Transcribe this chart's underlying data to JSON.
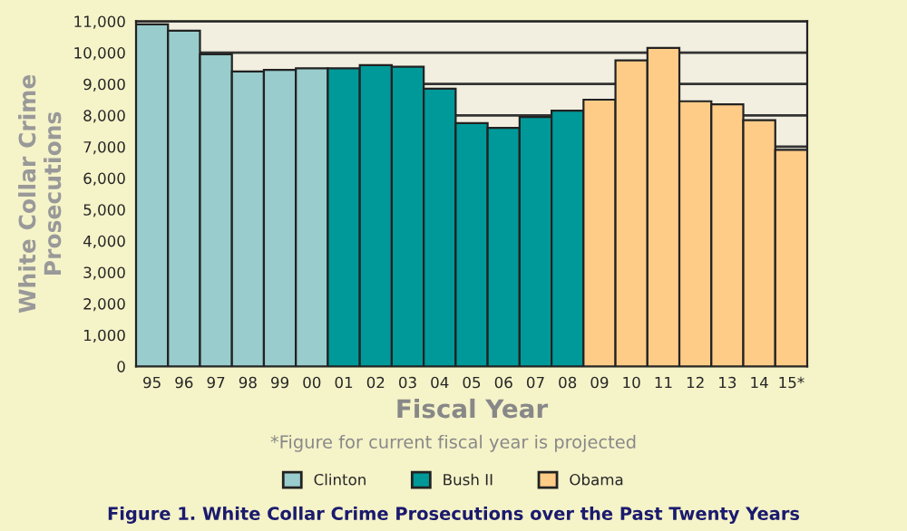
{
  "chart_data": {
    "type": "bar",
    "title": "Figure 1. White Collar Crime Prosecutions over the Past Twenty Years",
    "xlabel": "Fiscal Year",
    "ylabel": "White Collar Crime\nProsecutions",
    "annotations": [
      "*Figure for current fiscal year is projected"
    ],
    "categories": [
      "95",
      "96",
      "97",
      "98",
      "99",
      "00",
      "01",
      "02",
      "03",
      "04",
      "05",
      "06",
      "07",
      "08",
      "09",
      "10",
      "11",
      "12",
      "13",
      "14",
      "15*"
    ],
    "series": [
      {
        "name": "Clinton",
        "color": "#99cccc",
        "values": [
          10900,
          10700,
          9950,
          9400,
          9450,
          9500,
          null,
          null,
          null,
          null,
          null,
          null,
          null,
          null,
          null,
          null,
          null,
          null,
          null,
          null,
          null
        ]
      },
      {
        "name": "Bush II",
        "color": "#009999",
        "values": [
          null,
          null,
          null,
          null,
          null,
          null,
          9500,
          9600,
          9550,
          8850,
          7750,
          7600,
          7950,
          8150,
          null,
          null,
          null,
          null,
          null,
          null,
          null
        ]
      },
      {
        "name": "Obama",
        "color": "#ffcc88",
        "values": [
          null,
          null,
          null,
          null,
          null,
          null,
          null,
          null,
          null,
          null,
          null,
          null,
          null,
          null,
          8500,
          9750,
          10150,
          8450,
          8350,
          7850,
          6900
        ]
      }
    ],
    "ylim": [
      0,
      11000
    ],
    "yticks": [
      0,
      {
        "value": 1000,
        "label": "1,000"
      },
      {
        "value": 2000,
        "label": "2,000"
      },
      {
        "value": 3000,
        "label": "3,000"
      },
      {
        "value": 4000,
        "label": "4,000"
      },
      {
        "value": 5000,
        "label": "5,000"
      },
      {
        "value": 6000,
        "label": "6,000"
      },
      {
        "value": 7000,
        "label": "7,000"
      },
      {
        "value": 8000,
        "label": "8,000"
      },
      {
        "value": 9000,
        "label": "9,000"
      },
      {
        "value": 10000,
        "label": "10,000"
      },
      {
        "value": 11000,
        "label": "11,000"
      }
    ],
    "grid": "y",
    "legend": "bottom"
  }
}
